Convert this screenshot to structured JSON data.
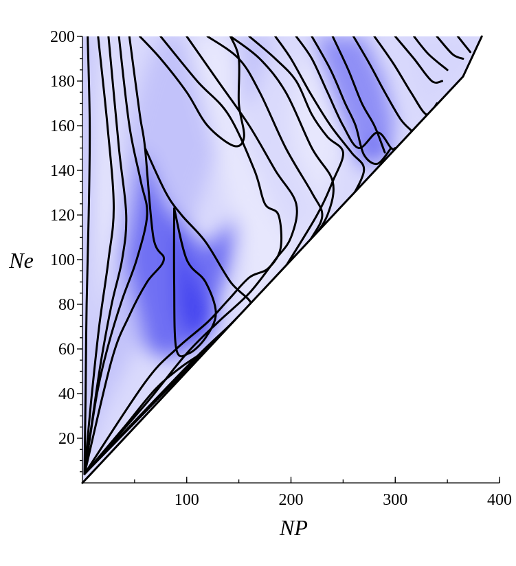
{
  "chart_data": {
    "type": "contour",
    "title": "",
    "xlabel": "NP",
    "ylabel": "Ne",
    "xlim": [
      0,
      400
    ],
    "ylim": [
      0,
      200
    ],
    "x_ticks": [
      100,
      200,
      300,
      400
    ],
    "y_ticks": [
      20,
      40,
      60,
      80,
      100,
      120,
      140,
      160,
      180,
      200
    ],
    "x_minor_step": 50,
    "y_minor_step": 5,
    "domain_boundary": {
      "description": "plot is defined only above the diagonal line NP = 2*Ne",
      "points": [
        [
          0,
          0
        ],
        [
          365,
          182
        ],
        [
          383,
          200
        ]
      ]
    },
    "colormap": {
      "low": "#ffffff",
      "high": "#3333ee"
    },
    "grid": false,
    "bands": [
      {
        "level": 0.45,
        "points": [
          [
            2,
            4
          ],
          [
            2,
            200
          ],
          [
            10,
            200
          ],
          [
            11,
            165
          ],
          [
            10,
            130
          ],
          [
            9,
            95
          ],
          [
            8,
            60
          ],
          [
            6,
            30
          ]
        ]
      },
      {
        "level": 0.1,
        "points": [
          [
            10,
            200
          ],
          [
            15,
            200
          ],
          [
            24,
            160
          ],
          [
            30,
            124
          ],
          [
            25,
            100
          ],
          [
            16,
            70
          ],
          [
            11,
            45
          ],
          [
            6,
            18
          ],
          [
            2,
            4
          ],
          [
            8,
            18
          ],
          [
            10,
            60
          ],
          [
            11,
            130
          ]
        ]
      },
      {
        "level": 0.3,
        "points": [
          [
            2,
            4
          ],
          [
            18,
            30
          ],
          [
            50,
            60
          ],
          [
            75,
            75
          ],
          [
            130,
            150
          ],
          [
            165,
            175
          ],
          [
            185,
            200
          ],
          [
            75,
            200
          ],
          [
            60,
            185
          ],
          [
            45,
            160
          ],
          [
            35,
            130
          ],
          [
            26,
            100
          ],
          [
            16,
            70
          ],
          [
            10,
            40
          ],
          [
            6,
            18
          ]
        ]
      },
      {
        "level": 0.7,
        "points": [
          [
            40,
            100
          ],
          [
            58,
            150
          ],
          [
            80,
            125
          ],
          [
            118,
            105
          ],
          [
            140,
            115
          ],
          [
            160,
            135
          ],
          [
            140,
            95
          ],
          [
            115,
            65
          ],
          [
            85,
            55
          ],
          [
            60,
            60
          ]
        ]
      },
      {
        "level": 0.9,
        "points": [
          [
            88,
            123
          ],
          [
            100,
            100
          ],
          [
            130,
            75
          ],
          [
            110,
            60
          ],
          [
            90,
            75
          ]
        ]
      },
      {
        "level": 0.12,
        "points": [
          [
            100,
            200
          ],
          [
            142,
            200
          ],
          [
            150,
            190
          ],
          [
            150,
            170
          ],
          [
            157,
            150
          ],
          [
            185,
            120
          ],
          [
            200,
            110
          ],
          [
            220,
            110
          ],
          [
            230,
            120
          ],
          [
            218,
            135
          ],
          [
            205,
            148
          ],
          [
            200,
            165
          ],
          [
            210,
            185
          ],
          [
            220,
            200
          ],
          [
            270,
            200
          ],
          [
            260,
            160
          ],
          [
            250,
            150
          ],
          [
            240,
            140
          ],
          [
            230,
            125
          ],
          [
            195,
            97
          ],
          [
            165,
            82
          ],
          [
            150,
            75
          ],
          [
            155,
            100
          ],
          [
            145,
            120
          ]
        ]
      },
      {
        "level": 0.55,
        "points": [
          [
            220,
            200
          ],
          [
            270,
            200
          ],
          [
            290,
            180
          ],
          [
            300,
            160
          ],
          [
            290,
            148
          ],
          [
            270,
            140
          ],
          [
            258,
            148
          ],
          [
            245,
            165
          ],
          [
            230,
            185
          ]
        ]
      },
      {
        "level": 0.75,
        "points": [
          [
            270,
            147
          ],
          [
            283,
            157
          ],
          [
            296,
            150
          ],
          [
            288,
            144
          ]
        ]
      },
      {
        "level": 0.2,
        "points": [
          [
            300,
            200
          ],
          [
            383,
            200
          ],
          [
            365,
            182
          ],
          [
            330,
            165
          ],
          [
            318,
            175
          ],
          [
            310,
            190
          ]
        ]
      }
    ],
    "contour_lines": [
      [
        [
          5,
          200
        ],
        [
          7,
          160
        ],
        [
          6,
          120
        ],
        [
          4,
          80
        ],
        [
          3,
          40
        ],
        [
          2,
          4
        ]
      ],
      [
        [
          15,
          200
        ],
        [
          24,
          160
        ],
        [
          30,
          124
        ],
        [
          25,
          100
        ],
        [
          16,
          70
        ],
        [
          8,
          35
        ],
        [
          2,
          4
        ]
      ],
      [
        [
          25,
          200
        ],
        [
          35,
          150
        ],
        [
          42,
          120
        ],
        [
          38,
          100
        ],
        [
          28,
          80
        ],
        [
          18,
          55
        ],
        [
          10,
          30
        ],
        [
          2,
          4
        ]
      ],
      [
        [
          35,
          200
        ],
        [
          45,
          160
        ],
        [
          56,
          135
        ],
        [
          62,
          120
        ],
        [
          52,
          100
        ],
        [
          38,
          82
        ],
        [
          25,
          62
        ],
        [
          14,
          40
        ],
        [
          2,
          4
        ]
      ],
      [
        [
          45,
          200
        ],
        [
          55,
          165
        ],
        [
          60,
          150
        ],
        [
          68,
          110
        ],
        [
          78,
          100
        ],
        [
          62,
          90
        ],
        [
          45,
          75
        ],
        [
          28,
          55
        ],
        [
          2,
          4
        ]
      ],
      [
        [
          55,
          200
        ],
        [
          75,
          190
        ],
        [
          100,
          175
        ],
        [
          120,
          160
        ],
        [
          145,
          151
        ],
        [
          155,
          155
        ],
        [
          150,
          170
        ],
        [
          150,
          190
        ],
        [
          142,
          200
        ]
      ],
      [
        [
          60,
          150
        ],
        [
          80,
          130
        ],
        [
          95,
          120
        ],
        [
          118,
          108
        ],
        [
          142,
          90
        ],
        [
          162,
          80
        ],
        [
          150,
          72
        ],
        [
          120,
          60
        ],
        [
          95,
          52
        ],
        [
          70,
          42
        ],
        [
          40,
          25
        ],
        [
          2,
          4
        ]
      ],
      [
        [
          88,
          123
        ],
        [
          100,
          100
        ],
        [
          118,
          90
        ],
        [
          128,
          76
        ],
        [
          118,
          65
        ],
        [
          102,
          58
        ],
        [
          90,
          60
        ],
        [
          88,
          90
        ],
        [
          88,
          123
        ]
      ],
      [
        [
          75,
          200
        ],
        [
          110,
          180
        ],
        [
          140,
          165
        ],
        [
          165,
          140
        ],
        [
          175,
          125
        ],
        [
          188,
          120
        ],
        [
          190,
          105
        ],
        [
          178,
          96
        ],
        [
          160,
          92
        ],
        [
          140,
          82
        ],
        [
          120,
          72
        ],
        [
          90,
          60
        ],
        [
          60,
          45
        ],
        [
          2,
          4
        ]
      ],
      [
        [
          100,
          200
        ],
        [
          130,
          180
        ],
        [
          160,
          160
        ],
        [
          185,
          140
        ],
        [
          205,
          125
        ],
        [
          200,
          110
        ],
        [
          185,
          100
        ],
        [
          160,
          85
        ],
        [
          130,
          72
        ],
        [
          100,
          58
        ],
        [
          60,
          35
        ],
        [
          2,
          4
        ]
      ],
      [
        [
          120,
          200
        ],
        [
          150,
          190
        ],
        [
          170,
          175
        ],
        [
          195,
          150
        ],
        [
          220,
          130
        ],
        [
          230,
          120
        ],
        [
          220,
          110
        ],
        [
          200,
          97
        ],
        [
          175,
          85
        ],
        [
          140,
          70
        ],
        [
          100,
          52
        ],
        [
          2,
          4
        ]
      ],
      [
        [
          142,
          200
        ],
        [
          170,
          190
        ],
        [
          195,
          175
        ],
        [
          220,
          150
        ],
        [
          240,
          135
        ],
        [
          235,
          120
        ],
        [
          218,
          108
        ],
        [
          195,
          97
        ],
        [
          165,
          82
        ],
        [
          2,
          4
        ]
      ],
      [
        [
          160,
          200
        ],
        [
          185,
          190
        ],
        [
          205,
          180
        ],
        [
          220,
          165
        ],
        [
          235,
          155
        ],
        [
          250,
          148
        ],
        [
          240,
          135
        ],
        [
          225,
          120
        ],
        [
          195,
          97
        ]
      ],
      [
        [
          185,
          200
        ],
        [
          200,
          190
        ],
        [
          218,
          175
        ],
        [
          238,
          160
        ],
        [
          258,
          148
        ],
        [
          270,
          140
        ],
        [
          255,
          125
        ]
      ],
      [
        [
          205,
          200
        ],
        [
          220,
          190
        ],
        [
          235,
          175
        ],
        [
          250,
          160
        ],
        [
          265,
          150
        ],
        [
          283,
          157
        ],
        [
          296,
          150
        ],
        [
          300,
          150
        ]
      ],
      [
        [
          220,
          200
        ],
        [
          238,
          185
        ],
        [
          252,
          170
        ],
        [
          262,
          160
        ],
        [
          270,
          147
        ],
        [
          283,
          143
        ],
        [
          296,
          150
        ]
      ],
      [
        [
          240,
          200
        ],
        [
          255,
          185
        ],
        [
          268,
          170
        ],
        [
          280,
          160
        ],
        [
          290,
          148
        ]
      ],
      [
        [
          260,
          200
        ],
        [
          275,
          188
        ],
        [
          290,
          175
        ],
        [
          305,
          163
        ],
        [
          315,
          158
        ]
      ],
      [
        [
          280,
          200
        ],
        [
          298,
          188
        ],
        [
          315,
          175
        ],
        [
          330,
          165
        ],
        [
          340,
          170
        ]
      ],
      [
        [
          300,
          200
        ],
        [
          318,
          190
        ],
        [
          335,
          180
        ],
        [
          345,
          180
        ]
      ],
      [
        [
          318,
          200
        ],
        [
          332,
          192
        ],
        [
          350,
          185
        ]
      ],
      [
        [
          340,
          200
        ],
        [
          355,
          192
        ],
        [
          365,
          190
        ]
      ],
      [
        [
          360,
          200
        ],
        [
          372,
          193
        ]
      ]
    ]
  }
}
